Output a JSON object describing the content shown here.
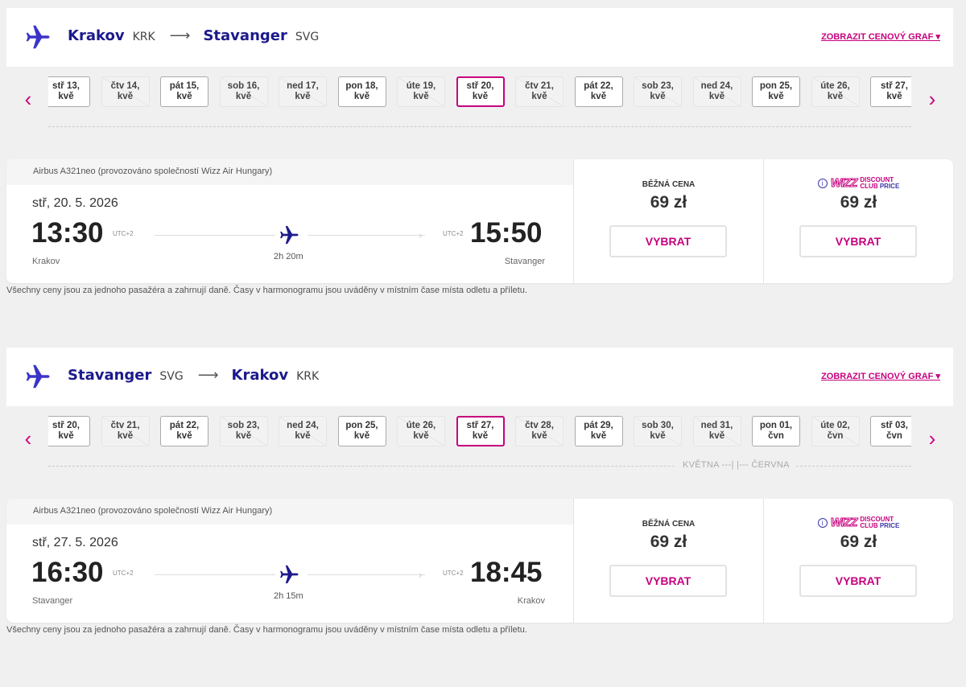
{
  "colors": {
    "accent": "#c6007e",
    "brand": "#1c1a8c",
    "background": "#f0f0f0"
  },
  "graph_link": "ZOBRAZIT CENOVÝ GRAF",
  "note": "Všechny ceny jsou za jednoho pasažéra a zahrnují daně. Časy v harmonogramu jsou uváděny v místním čase místa odletu a příletu.",
  "price_labels": {
    "regular": "BĚŽNÁ CENA",
    "club_logo": "WIZZ",
    "club_line1": "DISCOUNT",
    "club_line2a": "CLUB ",
    "club_line2b": "PRICE",
    "info_icon": "i",
    "select": "VYBRAT"
  },
  "flights": [
    {
      "from": "Krakov",
      "from_code": "KRK",
      "to": "Stavanger",
      "to_code": "SVG",
      "arrow": "⟶",
      "dates": [
        [
          "stř 13,",
          "kvě",
          "available"
        ],
        [
          "čtv 14,",
          "kvě",
          "unavailable"
        ],
        [
          "pát 15,",
          "kvě",
          "available"
        ],
        [
          "sob 16,",
          "kvě",
          "unavailable"
        ],
        [
          "ned 17,",
          "kvě",
          "unavailable"
        ],
        [
          "pon 18,",
          "kvě",
          "available"
        ],
        [
          "úte 19,",
          "kvě",
          "unavailable"
        ],
        [
          "stř 20,",
          "kvě",
          "selected"
        ],
        [
          "čtv 21,",
          "kvě",
          "unavailable"
        ],
        [
          "pát 22,",
          "kvě",
          "available"
        ],
        [
          "sob 23,",
          "kvě",
          "unavailable"
        ],
        [
          "ned 24,",
          "kvě",
          "unavailable"
        ],
        [
          "pon 25,",
          "kvě",
          "available"
        ],
        [
          "úte 26,",
          "kvě",
          "unavailable"
        ],
        [
          "stř 27,",
          "kvě",
          "available"
        ]
      ],
      "months": "",
      "aircraft": "Airbus A321neo (provozováno společností Wizz Air Hungary)",
      "date": "stř, 20. 5. 2026",
      "dep": "13:30",
      "arr": "15:50",
      "dep_tz": "UTC+2",
      "arr_tz": "UTC+2",
      "duration": "2h 20m",
      "dep_city": "Krakov",
      "arr_city": "Stavanger",
      "regular_price": "69 zł",
      "club_price": "69 zł"
    },
    {
      "from": "Stavanger",
      "from_code": "SVG",
      "to": "Krakov",
      "to_code": "KRK",
      "arrow": "⟶",
      "dates": [
        [
          "stř 20,",
          "kvě",
          "available"
        ],
        [
          "čtv 21,",
          "kvě",
          "unavailable"
        ],
        [
          "pát 22,",
          "kvě",
          "available"
        ],
        [
          "sob 23,",
          "kvě",
          "unavailable"
        ],
        [
          "ned 24,",
          "kvě",
          "unavailable"
        ],
        [
          "pon 25,",
          "kvě",
          "available"
        ],
        [
          "úte 26,",
          "kvě",
          "unavailable"
        ],
        [
          "stř 27,",
          "kvě",
          "selected"
        ],
        [
          "čtv 28,",
          "kvě",
          "unavailable"
        ],
        [
          "pát 29,",
          "kvě",
          "available"
        ],
        [
          "sob 30,",
          "kvě",
          "unavailable"
        ],
        [
          "ned 31,",
          "kvě",
          "unavailable"
        ],
        [
          "pon 01,",
          "čvn",
          "available"
        ],
        [
          "úte 02,",
          "čvn",
          "unavailable"
        ],
        [
          "stř 03,",
          "čvn",
          "available"
        ]
      ],
      "months": "KVĚTNA ---|  |--- ČERVNA",
      "aircraft": "Airbus A321neo (provozováno společností Wizz Air Hungary)",
      "date": "stř, 27. 5. 2026",
      "dep": "16:30",
      "arr": "18:45",
      "dep_tz": "UTC+2",
      "arr_tz": "UTC+2",
      "duration": "2h 15m",
      "dep_city": "Stavanger",
      "arr_city": "Krakov",
      "regular_price": "69 zł",
      "club_price": "69 zł"
    }
  ]
}
